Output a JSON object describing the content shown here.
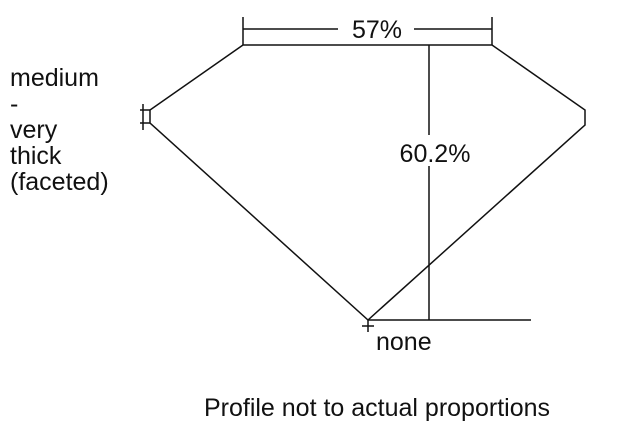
{
  "diagram": {
    "table_percent": "57%",
    "depth_percent": "60.2%",
    "girdle_label": [
      "medium",
      "-",
      "very",
      "thick",
      "(faceted)"
    ],
    "culet_label": "none",
    "caption": "Profile not to actual proportions",
    "line_color": "#111111"
  }
}
